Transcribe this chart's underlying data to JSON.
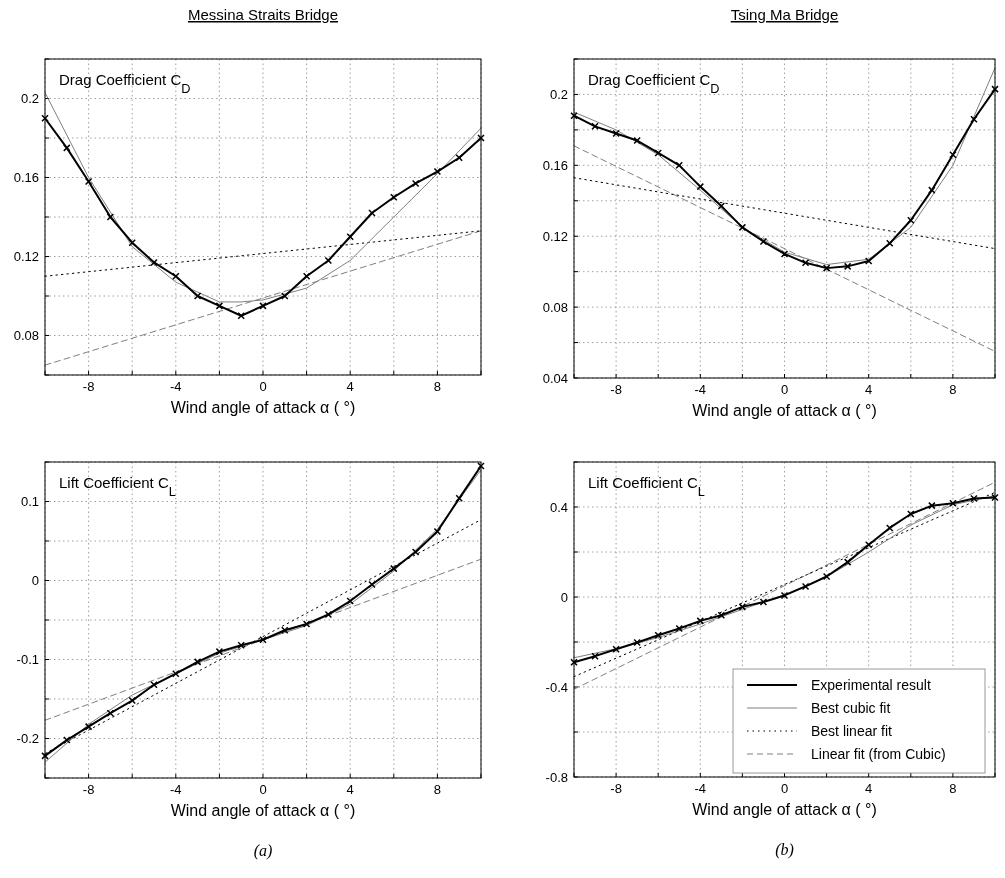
{
  "chart_data": [
    {
      "type": "line",
      "title": "Messina Straits Bridge",
      "ylabel": "Drag Coefficient C$_{D}$",
      "xlabel": "Wind angle of attack α ( °)",
      "xlim": [
        -10,
        10
      ],
      "xticks": [
        {
          "value": -10,
          "label": null
        },
        -8,
        {
          "value": -6,
          "label": null
        },
        -4,
        {
          "value": -2,
          "label": null
        },
        0,
        {
          "value": 2,
          "label": null
        },
        4,
        {
          "value": 6,
          "label": null
        },
        8,
        {
          "value": 10,
          "label": null
        }
      ],
      "ylim": [
        0.06,
        0.22
      ],
      "yticks": [
        {
          "value": 0.06,
          "label": null
        },
        0.08,
        {
          "value": 0.1,
          "label": null
        },
        0.12,
        {
          "value": 0.14,
          "label": null
        },
        0.16,
        {
          "value": 0.18,
          "label": null
        },
        0.2,
        {
          "value": 0.22,
          "label": null
        }
      ],
      "grid": true,
      "legend": false,
      "series": [
        {
          "color": "#000000",
          "marker": "cross",
          "line_style": "solid",
          "x": [
            -10,
            -9,
            -8,
            -7,
            -6,
            -5,
            -4,
            -3,
            -2,
            -1,
            0,
            1,
            2,
            3,
            4,
            5,
            6,
            7,
            8,
            9,
            10
          ],
          "values": [
            0.19,
            0.175,
            0.158,
            0.14,
            0.127,
            0.117,
            0.11,
            0.1,
            0.095,
            0.09,
            0.095,
            0.1,
            0.11,
            0.118,
            0.13,
            0.142,
            0.15,
            0.157,
            0.163,
            0.17,
            0.18
          ]
        },
        {
          "color": "#808080",
          "marker": "none",
          "line_style": "solid",
          "x": [
            -10,
            -8,
            -6,
            -4,
            -2,
            -1,
            0,
            2,
            4,
            6,
            8,
            10
          ],
          "values": [
            0.203,
            0.16,
            0.125,
            0.107,
            0.097,
            0.097,
            0.098,
            0.104,
            0.118,
            0.14,
            0.162,
            0.185
          ]
        },
        {
          "color": "#000000",
          "marker": "none",
          "line_style": "dotted",
          "x": [
            -10,
            10
          ],
          "values": [
            0.11,
            0.133
          ]
        },
        {
          "color": "#808080",
          "marker": "none",
          "line_style": "dashed",
          "x": [
            -10,
            10
          ],
          "values": [
            0.065,
            0.133
          ]
        }
      ]
    },
    {
      "type": "line",
      "title": "Tsing Ma Bridge",
      "ylabel": "Drag Coefficient C$_{D}$",
      "xlabel": "Wind angle of attack α ( °)",
      "xlim": [
        -10,
        10
      ],
      "xticks": [
        {
          "value": -10,
          "label": null
        },
        -8,
        {
          "value": -6,
          "label": null
        },
        -4,
        {
          "value": -2,
          "label": null
        },
        0,
        {
          "value": 2,
          "label": null
        },
        4,
        {
          "value": 6,
          "label": null
        },
        8,
        {
          "value": 10,
          "label": null
        }
      ],
      "ylim": [
        0.04,
        0.22
      ],
      "yticks": [
        0.04,
        {
          "value": 0.06,
          "label": null
        },
        0.08,
        {
          "value": 0.1,
          "label": null
        },
        0.12,
        {
          "value": 0.14,
          "label": null
        },
        0.16,
        {
          "value": 0.18,
          "label": null
        },
        0.2,
        {
          "value": 0.22,
          "label": null
        }
      ],
      "grid": true,
      "legend": false,
      "series": [
        {
          "color": "#000000",
          "marker": "cross",
          "line_style": "solid",
          "x": [
            -10,
            -9,
            -8,
            -7,
            -6,
            -5,
            -4,
            -3,
            -2,
            -1,
            0,
            1,
            2,
            3,
            4,
            5,
            6,
            7,
            8,
            9,
            10
          ],
          "values": [
            0.188,
            0.182,
            0.178,
            0.174,
            0.167,
            0.16,
            0.148,
            0.137,
            0.125,
            0.117,
            0.11,
            0.105,
            0.102,
            0.103,
            0.106,
            0.116,
            0.129,
            0.146,
            0.166,
            0.186,
            0.203
          ]
        },
        {
          "color": "#808080",
          "marker": "none",
          "line_style": "solid",
          "x": [
            -10,
            -8,
            -6,
            -4,
            -2,
            0,
            2,
            4,
            6,
            8,
            10
          ],
          "values": [
            0.19,
            0.18,
            0.166,
            0.146,
            0.125,
            0.111,
            0.104,
            0.107,
            0.125,
            0.16,
            0.215
          ]
        },
        {
          "color": "#000000",
          "marker": "none",
          "line_style": "dotted",
          "x": [
            -10,
            10
          ],
          "values": [
            0.153,
            0.113
          ]
        },
        {
          "color": "#808080",
          "marker": "none",
          "line_style": "dashed",
          "x": [
            -10,
            10
          ],
          "values": [
            0.171,
            0.055
          ]
        }
      ]
    },
    {
      "type": "line",
      "ylabel": "Lift Coefficient C$_{L}$",
      "xlabel": "Wind angle of attack α ( °)",
      "annotations": [
        "(a)"
      ],
      "xlim": [
        -10,
        10
      ],
      "xticks": [
        {
          "value": -10,
          "label": null
        },
        -8,
        {
          "value": -6,
          "label": null
        },
        -4,
        {
          "value": -2,
          "label": null
        },
        0,
        {
          "value": 2,
          "label": null
        },
        4,
        {
          "value": 6,
          "label": null
        },
        8,
        {
          "value": 10,
          "label": null
        }
      ],
      "ylim": [
        -0.25,
        0.15
      ],
      "yticks": [
        {
          "value": -0.25,
          "label": null
        },
        -0.2,
        {
          "value": -0.15,
          "label": null
        },
        -0.1,
        {
          "value": -0.05,
          "label": null
        },
        0,
        {
          "value": 0.05,
          "label": null
        },
        0.1,
        {
          "value": 0.15,
          "label": null
        }
      ],
      "grid": true,
      "legend": false,
      "series": [
        {
          "color": "#000000",
          "marker": "cross",
          "line_style": "solid",
          "x": [
            -10,
            -9,
            -8,
            -7,
            -6,
            -5,
            -4,
            -3,
            -2,
            -1,
            0,
            1,
            2,
            3,
            4,
            5,
            6,
            7,
            8,
            9,
            10
          ],
          "values": [
            -0.222,
            -0.202,
            -0.185,
            -0.168,
            -0.152,
            -0.132,
            -0.118,
            -0.103,
            -0.09,
            -0.082,
            -0.075,
            -0.063,
            -0.055,
            -0.043,
            -0.026,
            -0.005,
            0.015,
            0.036,
            0.062,
            0.104,
            0.145
          ]
        },
        {
          "color": "#808080",
          "marker": "none",
          "line_style": "solid",
          "x": [
            -10,
            -8,
            -6,
            -4,
            -2,
            0,
            2,
            4,
            6,
            8,
            10
          ],
          "values": [
            -0.23,
            -0.182,
            -0.145,
            -0.118,
            -0.092,
            -0.075,
            -0.057,
            -0.03,
            0.012,
            0.065,
            0.14
          ]
        },
        {
          "color": "#000000",
          "marker": "none",
          "line_style": "dotted",
          "x": [
            -10,
            10
          ],
          "values": [
            -0.219,
            0.077
          ]
        },
        {
          "color": "#808080",
          "marker": "none",
          "line_style": "dashed",
          "x": [
            -10,
            10
          ],
          "values": [
            -0.177,
            0.027
          ]
        }
      ]
    },
    {
      "type": "line",
      "ylabel": "Lift Coefficient C$_{L}$",
      "xlabel": "Wind angle of attack α ( °)",
      "annotations": [
        "(b)"
      ],
      "xlim": [
        -10,
        10
      ],
      "xticks": [
        {
          "value": -10,
          "label": null
        },
        -8,
        {
          "value": -6,
          "label": null
        },
        -4,
        {
          "value": -2,
          "label": null
        },
        0,
        {
          "value": 2,
          "label": null
        },
        4,
        {
          "value": 6,
          "label": null
        },
        8,
        {
          "value": 10,
          "label": null
        }
      ],
      "ylim": [
        -0.8,
        0.6
      ],
      "yticks": [
        -0.8,
        {
          "value": -0.6,
          "label": null
        },
        -0.4,
        {
          "value": -0.2,
          "label": null
        },
        0,
        {
          "value": 0.2,
          "label": null
        },
        0.4,
        {
          "value": 0.6,
          "label": null
        }
      ],
      "grid": true,
      "legend": "bottom right",
      "series": [
        {
          "name": "Experimental result",
          "color": "#000000",
          "marker": "cross",
          "line_style": "solid",
          "x": [
            -10,
            -9,
            -8,
            -7,
            -6,
            -5,
            -4,
            -3,
            -2,
            -1,
            0,
            1,
            2,
            3,
            4,
            5,
            6,
            7,
            8,
            9,
            10
          ],
          "values": [
            -0.29,
            -0.263,
            -0.232,
            -0.202,
            -0.17,
            -0.14,
            -0.106,
            -0.081,
            -0.044,
            -0.022,
            0.007,
            0.047,
            0.091,
            0.155,
            0.232,
            0.307,
            0.369,
            0.406,
            0.417,
            0.438,
            0.442
          ]
        },
        {
          "name": "Best cubic fit",
          "color": "#808080",
          "marker": "none",
          "line_style": "solid",
          "x": [
            -10,
            -8,
            -6,
            -4,
            -2,
            0,
            2,
            4,
            6,
            8,
            10
          ],
          "values": [
            -0.27,
            -0.23,
            -0.18,
            -0.12,
            -0.055,
            0.01,
            0.09,
            0.2,
            0.32,
            0.41,
            0.45
          ]
        },
        {
          "name": "Best linear fit",
          "color": "#000000",
          "marker": "none",
          "line_style": "dotted",
          "x": [
            -10,
            10
          ],
          "values": [
            -0.354,
            0.465
          ]
        },
        {
          "name": "Linear fit (from Cubic)",
          "color": "#808080",
          "marker": "none",
          "line_style": "dashed",
          "x": [
            -10,
            10
          ],
          "values": [
            -0.41,
            0.51
          ]
        }
      ]
    }
  ]
}
